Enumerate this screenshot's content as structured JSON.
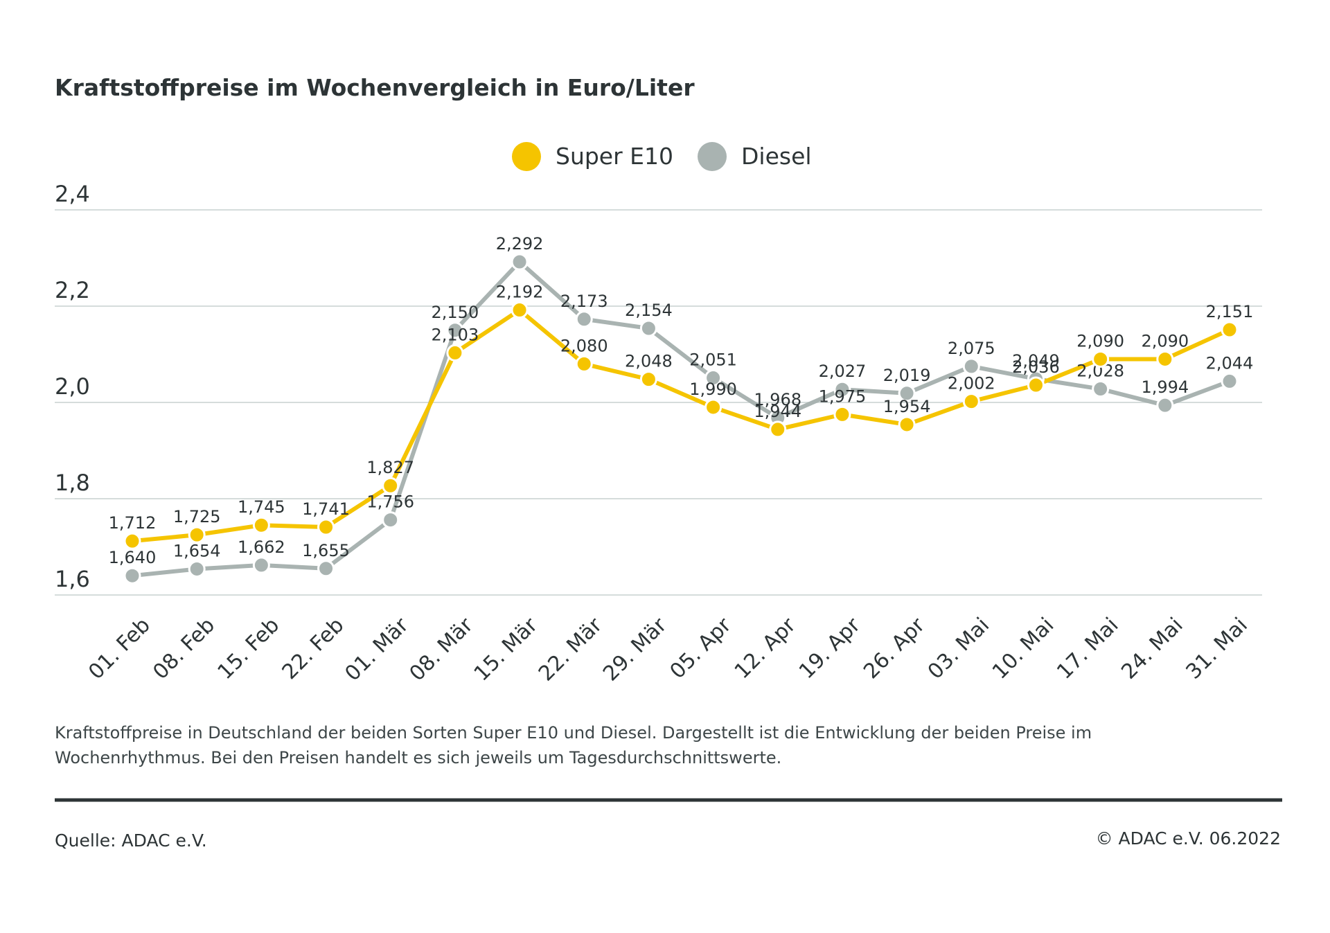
{
  "chart_data": {
    "type": "line",
    "title": "Kraftstoffpreise im Wochenvergleich in Euro/Liter",
    "categories": [
      "01. Feb",
      "08. Feb",
      "15. Feb",
      "22. Feb",
      "01. Mär",
      "08. Mär",
      "15. Mär",
      "22. Mär",
      "29. Mär",
      "05. Apr",
      "12. Apr",
      "19. Apr",
      "26. Apr",
      "03. Mai",
      "10. Mai",
      "17. Mai",
      "24. Mai",
      "31. Mai"
    ],
    "series": [
      {
        "name": "Super E10",
        "color": "#f5c400",
        "values": [
          1.712,
          1.725,
          1.745,
          1.741,
          1.827,
          2.103,
          2.192,
          2.08,
          2.048,
          1.99,
          1.944,
          1.975,
          1.954,
          2.002,
          2.036,
          2.09,
          2.09,
          2.151
        ],
        "value_labels": [
          "1,712",
          "1,725",
          "1,745",
          "1,741",
          "1,827",
          "2,103",
          "2,192",
          "2,080",
          "2,048",
          "1,990",
          "1,944",
          "1,975",
          "1,954",
          "2,002",
          "2,036",
          "2,090",
          "2,090",
          "2,151"
        ]
      },
      {
        "name": "Diesel",
        "color": "#a9b3b1",
        "values": [
          1.64,
          1.654,
          1.662,
          1.655,
          1.756,
          2.15,
          2.292,
          2.173,
          2.154,
          2.051,
          1.968,
          2.027,
          2.019,
          2.075,
          2.049,
          2.028,
          1.994,
          2.044
        ],
        "value_labels": [
          "1,640",
          "1,654",
          "1,662",
          "1,655",
          "1,756",
          "2,150",
          "2,292",
          "2,173",
          "2,154",
          "2,051",
          "1,968",
          "2,027",
          "2,019",
          "2,075",
          "2,049",
          "2,028",
          "1,994",
          "2,044"
        ]
      }
    ],
    "ylim": [
      1.6,
      2.4
    ],
    "yticks": [
      {
        "value": 1.6,
        "label": "1,6"
      },
      {
        "value": 1.8,
        "label": "1,8"
      },
      {
        "value": 2.0,
        "label": "2,0"
      },
      {
        "value": 2.2,
        "label": "2,2"
      },
      {
        "value": 2.4,
        "label": "2,4"
      }
    ],
    "grid": true,
    "description": "Kraftstoffpreise in Deutschland der beiden Sorten Super E10 und Diesel. Dargestellt ist die Entwicklung der beiden Preise im Wochenrhythmus. Bei den Preisen handelt es sich jeweils um Tagesdurchschnittswerte.",
    "source": "Quelle: ADAC e.V.",
    "copyright": "© ADAC e.V. 06.2022"
  }
}
